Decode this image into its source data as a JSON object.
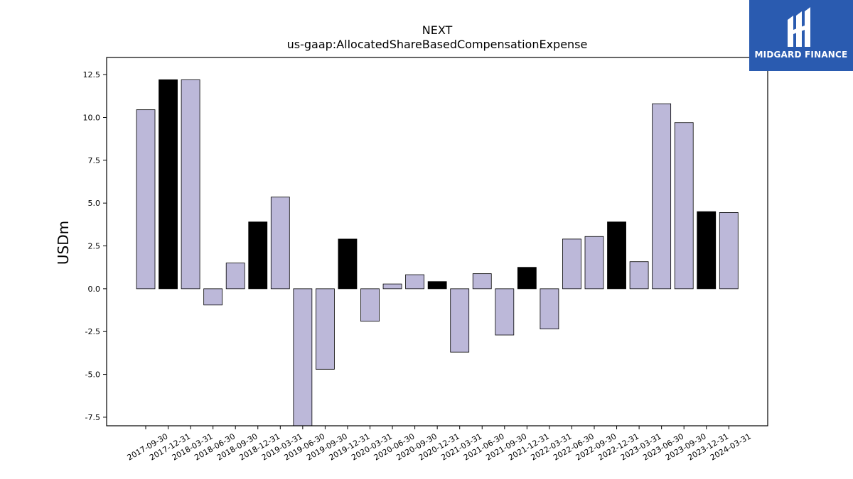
{
  "chart_data": {
    "type": "bar",
    "title": "NEXT",
    "subtitle": "us-gaap:AllocatedShareBasedCompensationExpense",
    "xlabel": "",
    "ylabel": "USDm",
    "ylim": [
      -8.0,
      13.5
    ],
    "yticks": [
      -7.5,
      -5.0,
      -2.5,
      0.0,
      2.5,
      5.0,
      7.5,
      10.0,
      12.5
    ],
    "categories": [
      "2017-09-30",
      "2017-12-31",
      "2018-03-31",
      "2018-06-30",
      "2018-09-30",
      "2018-12-31",
      "2019-03-31",
      "2019-06-30",
      "2019-09-30",
      "2019-12-31",
      "2020-03-31",
      "2020-06-30",
      "2020-09-30",
      "2020-12-31",
      "2021-03-31",
      "2021-06-30",
      "2021-09-30",
      "2021-12-31",
      "2022-03-31",
      "2022-06-30",
      "2022-09-30",
      "2022-12-31",
      "2023-03-31",
      "2023-06-30",
      "2023-09-30",
      "2023-12-31",
      "2024-03-31"
    ],
    "values": [
      10.45,
      12.2,
      12.2,
      -0.95,
      1.5,
      3.9,
      5.35,
      -8.05,
      -4.7,
      2.9,
      -1.9,
      0.28,
      0.82,
      0.42,
      -3.7,
      0.88,
      -2.7,
      1.25,
      -2.35,
      2.9,
      3.05,
      3.9,
      1.58,
      10.8,
      9.7,
      4.5,
      4.45
    ],
    "bar_colors": [
      "#bcb8d9",
      "#000000",
      "#bcb8d9",
      "#bcb8d9",
      "#bcb8d9",
      "#000000",
      "#bcb8d9",
      "#bcb8d9",
      "#bcb8d9",
      "#000000",
      "#bcb8d9",
      "#bcb8d9",
      "#bcb8d9",
      "#000000",
      "#bcb8d9",
      "#bcb8d9",
      "#bcb8d9",
      "#000000",
      "#bcb8d9",
      "#bcb8d9",
      "#bcb8d9",
      "#000000",
      "#bcb8d9",
      "#bcb8d9",
      "#bcb8d9",
      "#000000",
      "#bcb8d9"
    ],
    "grid": false
  },
  "logo": {
    "text": "MIDGARD FINANCE",
    "background": "#2a5bb0"
  }
}
